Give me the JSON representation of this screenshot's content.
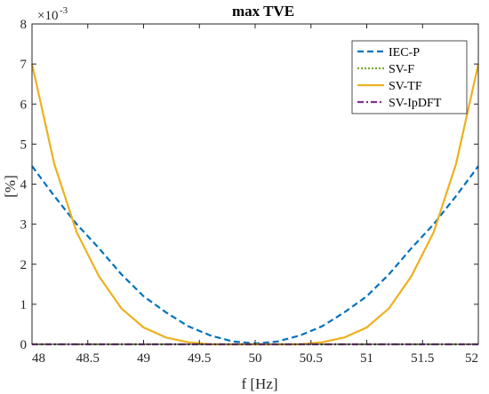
{
  "chart_data": {
    "type": "line",
    "title": "max TVE",
    "xlabel": "f [Hz]",
    "ylabel": "[%]",
    "y_multiplier": {
      "base": "×10",
      "power": "-3"
    },
    "xlim": [
      48,
      52
    ],
    "ylim": [
      0,
      8
    ],
    "grid": false,
    "legend_position": "top-right",
    "x_ticks": [
      48,
      48.5,
      49,
      49.5,
      50,
      50.5,
      51,
      51.5,
      52
    ],
    "x_tick_labels": [
      "48",
      "48.5",
      "49",
      "49.5",
      "50",
      "50.5",
      "51",
      "51.5",
      "52"
    ],
    "y_ticks": [
      0,
      1,
      2,
      3,
      4,
      5,
      6,
      7,
      8
    ],
    "y_tick_labels": [
      "0",
      "1",
      "2",
      "3",
      "4",
      "5",
      "6",
      "7",
      "8"
    ],
    "series": [
      {
        "name": "IEC-P",
        "color": "#0072BD",
        "style": "dashed",
        "x": [
          48,
          48.2,
          48.4,
          48.6,
          48.8,
          49,
          49.2,
          49.4,
          49.6,
          49.8,
          50,
          50.2,
          50.4,
          50.6,
          50.8,
          51,
          51.2,
          51.4,
          51.6,
          51.8,
          52
        ],
        "y": [
          4.45,
          3.7,
          3.0,
          2.4,
          1.75,
          1.2,
          0.8,
          0.45,
          0.22,
          0.07,
          0.02,
          0.07,
          0.22,
          0.45,
          0.8,
          1.2,
          1.75,
          2.4,
          3.0,
          3.7,
          4.45
        ]
      },
      {
        "name": "SV-F",
        "color": "#77AC30",
        "style": "dotted",
        "x": [
          48,
          52
        ],
        "y": [
          0,
          0
        ]
      },
      {
        "name": "SV-TF",
        "color": "#EDB120",
        "style": "solid",
        "x": [
          48,
          48.2,
          48.4,
          48.6,
          48.8,
          49,
          49.2,
          49.4,
          49.6,
          49.8,
          50,
          50.2,
          50.4,
          50.6,
          50.8,
          51,
          51.2,
          51.4,
          51.6,
          51.8,
          52
        ],
        "y": [
          7.0,
          4.5,
          2.8,
          1.7,
          0.9,
          0.42,
          0.17,
          0.05,
          0.0,
          0.0,
          0.0,
          0.0,
          0.0,
          0.05,
          0.17,
          0.42,
          0.9,
          1.7,
          2.8,
          4.5,
          7.0
        ]
      },
      {
        "name": "SV-IpDFT",
        "color": "#7E2F8E",
        "style": "dashdot",
        "x": [
          48,
          52
        ],
        "y": [
          0,
          0
        ]
      }
    ]
  }
}
